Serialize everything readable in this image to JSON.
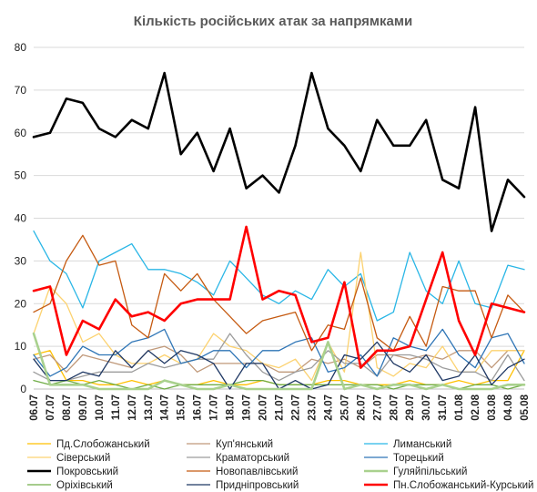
{
  "chart_data": {
    "type": "line",
    "title": "Кількість російських атак за напрямками",
    "ylim": [
      0,
      80
    ],
    "yticks": [
      0,
      10,
      20,
      30,
      40,
      50,
      60,
      70,
      80
    ],
    "grid": true,
    "legend_position": "bottom",
    "categories": [
      "06.07",
      "07.07",
      "08.07",
      "09.07",
      "10.07",
      "11.07",
      "12.07",
      "13.07",
      "14.07",
      "15.07",
      "16.07",
      "17.07",
      "18.07",
      "19.07",
      "20.07",
      "21.07",
      "22.07",
      "23.07",
      "24.07",
      "25.07",
      "26.07",
      "27.07",
      "28.07",
      "29.07",
      "30.07",
      "31.07",
      "01.08",
      "02.08",
      "03.08",
      "04.08",
      "05.08"
    ],
    "series": [
      {
        "name": "Пд.Слобожанський",
        "color": "#ffc000",
        "width": 1.3,
        "values": [
          8,
          9,
          2,
          2,
          1,
          1,
          2,
          1,
          2,
          1,
          1,
          2,
          1,
          1,
          2,
          1,
          1,
          1,
          2,
          2,
          1,
          1,
          1,
          2,
          1,
          1,
          2,
          1,
          2,
          2,
          9
        ]
      },
      {
        "name": "Куп'янський",
        "color": "#c0997a",
        "width": 1.3,
        "values": [
          7,
          8,
          4,
          8,
          7,
          6,
          5,
          9,
          10,
          8,
          4,
          6,
          6,
          6,
          6,
          4,
          4,
          7,
          6,
          7,
          5,
          8,
          8,
          7,
          8,
          7,
          9,
          9,
          5,
          9,
          9
        ]
      },
      {
        "name": "Лиманський",
        "color": "#29b6e6",
        "width": 1.3,
        "values": [
          37,
          30,
          27,
          19,
          30,
          32,
          34,
          28,
          28,
          27,
          25,
          22,
          30,
          26,
          22,
          20,
          23,
          21,
          28,
          24,
          27,
          16,
          18,
          32,
          23,
          20,
          30,
          20,
          19,
          29,
          28
        ]
      },
      {
        "name": "Сіверський",
        "color": "#fcd270",
        "width": 1.3,
        "values": [
          13,
          24,
          20,
          11,
          13,
          8,
          6,
          6,
          8,
          6,
          7,
          13,
          10,
          9,
          6,
          5,
          7,
          2,
          11,
          4,
          32,
          5,
          3,
          6,
          5,
          10,
          4,
          4,
          9,
          9,
          9
        ]
      },
      {
        "name": "Краматорський",
        "color": "#9c9c9c",
        "width": 1.3,
        "values": [
          4,
          2,
          2,
          3,
          4,
          4,
          4,
          6,
          5,
          6,
          7,
          7,
          13,
          8,
          4,
          2,
          4,
          5,
          9,
          6,
          6,
          3,
          8,
          8,
          7,
          5,
          4,
          4,
          2,
          8,
          2
        ]
      },
      {
        "name": "Торецький",
        "color": "#2e75b6",
        "width": 1.3,
        "values": [
          8,
          3,
          5,
          10,
          8,
          8,
          11,
          12,
          14,
          6,
          7,
          9,
          9,
          5,
          9,
          9,
          11,
          12,
          4,
          5,
          8,
          3,
          12,
          10,
          9,
          14,
          8,
          5,
          12,
          13,
          6
        ]
      },
      {
        "name": "Покровський",
        "color": "#000000",
        "width": 2.6,
        "values": [
          59,
          60,
          68,
          67,
          61,
          59,
          63,
          61,
          74,
          55,
          60,
          51,
          61,
          47,
          50,
          46,
          57,
          74,
          61,
          57,
          51,
          63,
          57,
          57,
          63,
          49,
          47,
          66,
          37,
          49,
          45
        ]
      },
      {
        "name": "Новопавлівський",
        "color": "#c55a11",
        "width": 1.3,
        "values": [
          18,
          20,
          30,
          36,
          29,
          30,
          15,
          12,
          27,
          23,
          27,
          21,
          17,
          13,
          16,
          17,
          18,
          9,
          15,
          14,
          26,
          12,
          9,
          17,
          10,
          24,
          23,
          23,
          12,
          22,
          18
        ]
      },
      {
        "name": "Гуляйпільський",
        "color": "#a9d18e",
        "width": 2.6,
        "values": [
          13,
          1,
          1,
          1,
          0,
          0,
          0,
          0,
          2,
          1,
          0,
          0,
          1,
          0,
          0,
          0,
          0,
          0,
          11,
          0,
          1,
          0,
          1,
          1,
          0,
          1,
          0,
          0,
          0,
          1,
          1
        ]
      },
      {
        "name": "Оріхівський",
        "color": "#70ad47",
        "width": 1.3,
        "values": [
          2,
          1,
          2,
          1,
          2,
          1,
          0,
          1,
          0,
          1,
          1,
          1,
          1,
          2,
          2,
          1,
          1,
          1,
          1,
          1,
          1,
          1,
          0,
          1,
          1,
          1,
          0,
          1,
          1,
          0,
          1
        ]
      },
      {
        "name": "Придніпровський",
        "color": "#1f3864",
        "width": 1.3,
        "values": [
          7,
          2,
          2,
          4,
          3,
          9,
          5,
          9,
          6,
          9,
          8,
          6,
          0,
          6,
          6,
          0,
          2,
          0,
          1,
          8,
          7,
          11,
          6,
          4,
          8,
          2,
          3,
          8,
          1,
          5,
          7
        ]
      },
      {
        "name": "Пн.Слобожанський-Курський",
        "color": "#ff0000",
        "width": 2.6,
        "values": [
          23,
          24,
          8,
          16,
          14,
          21,
          17,
          18,
          16,
          20,
          21,
          21,
          21,
          38,
          21,
          23,
          22,
          11,
          12,
          25,
          5,
          9,
          9,
          10,
          21,
          32,
          16,
          8,
          20,
          19,
          18
        ]
      }
    ]
  }
}
